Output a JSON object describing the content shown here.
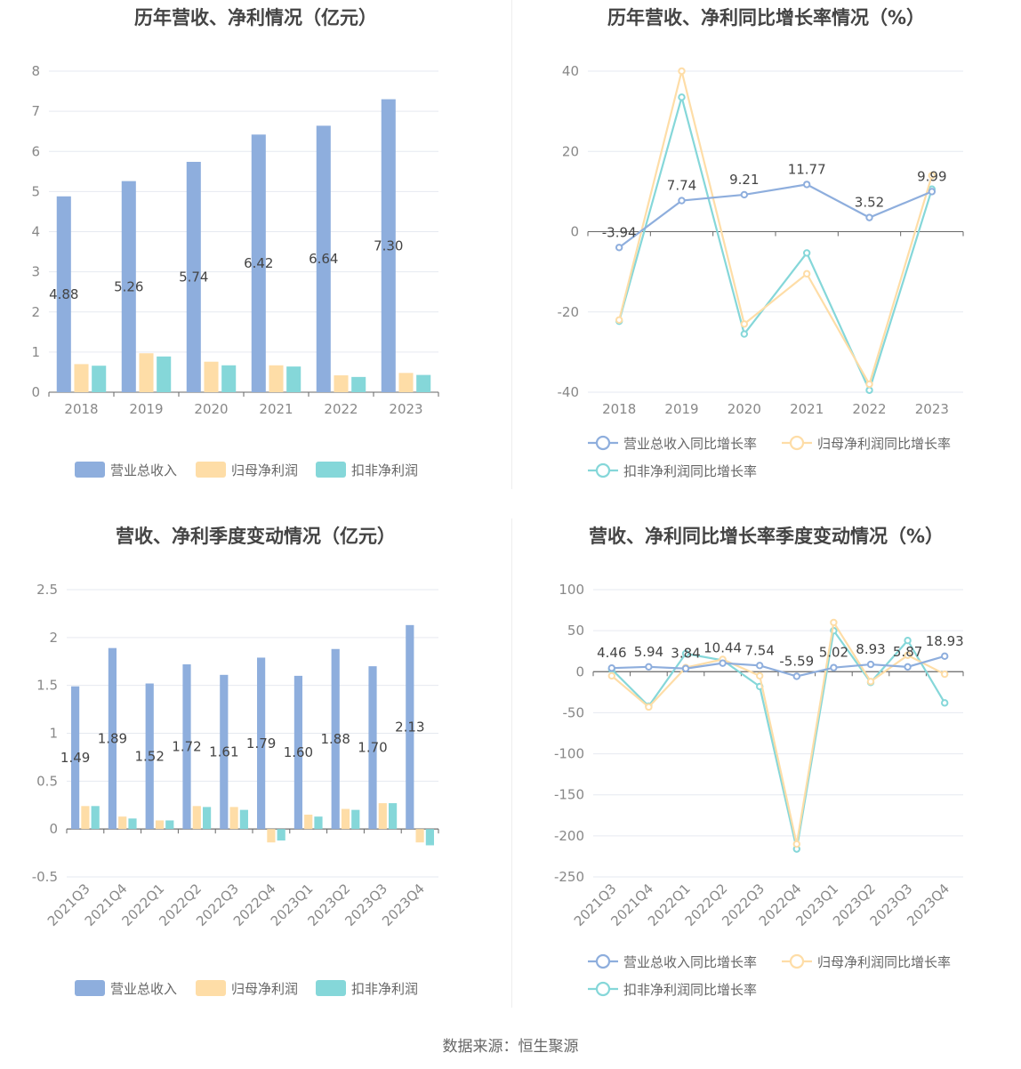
{
  "source": "数据来源：恒生聚源",
  "chart_data": [
    {
      "id": "annual_amount",
      "type": "bar",
      "title": "历年营收、净利情况（亿元）",
      "categories": [
        "2018",
        "2019",
        "2020",
        "2021",
        "2022",
        "2023"
      ],
      "ylim": [
        0,
        8
      ],
      "yticks": [
        0,
        1,
        2,
        3,
        4,
        5,
        6,
        7,
        8
      ],
      "grid": true,
      "legend_position": "bottom",
      "series": [
        {
          "name": "营业总收入",
          "color": "#8eaedd",
          "values": [
            4.88,
            5.26,
            5.74,
            6.42,
            6.64,
            7.3
          ],
          "labels": [
            "4.88",
            "5.26",
            "5.74",
            "6.42",
            "6.64",
            "7.30"
          ]
        },
        {
          "name": "归母净利润",
          "color": "#fedda7",
          "values": [
            0.7,
            0.97,
            0.76,
            0.67,
            0.42,
            0.48
          ]
        },
        {
          "name": "扣非净利润",
          "color": "#85d7d9",
          "values": [
            0.66,
            0.89,
            0.67,
            0.64,
            0.38,
            0.43
          ]
        }
      ]
    },
    {
      "id": "annual_growth",
      "type": "line",
      "title": "历年营收、净利同比增长率情况（%）",
      "categories": [
        "2018",
        "2019",
        "2020",
        "2021",
        "2022",
        "2023"
      ],
      "ylim": [
        -40,
        40
      ],
      "yticks": [
        -40,
        -20,
        0,
        20,
        40
      ],
      "grid": true,
      "legend_position": "bottom",
      "series": [
        {
          "name": "营业总收入同比增长率",
          "color": "#8eaedd",
          "values": [
            -3.94,
            7.74,
            9.21,
            11.77,
            3.52,
            9.99
          ],
          "labels": [
            "-3.94",
            "7.74",
            "9.21",
            "11.77",
            "3.52",
            "9.99"
          ]
        },
        {
          "name": "归母净利润同比增长率",
          "color": "#fedda7",
          "values": [
            -22,
            40,
            -23,
            -10.5,
            -38,
            14
          ]
        },
        {
          "name": "扣非净利润同比增长率",
          "color": "#85d7d9",
          "values": [
            -22.3,
            33.5,
            -25.5,
            -5.3,
            -39.5,
            10.6
          ]
        }
      ]
    },
    {
      "id": "quarterly_amount",
      "type": "bar",
      "title": "营收、净利季度变动情况（亿元）",
      "categories": [
        "2021Q3",
        "2021Q4",
        "2022Q1",
        "2022Q2",
        "2022Q3",
        "2022Q4",
        "2023Q1",
        "2023Q2",
        "2023Q3",
        "2023Q4"
      ],
      "ylim": [
        -0.5,
        2.5
      ],
      "yticks": [
        -0.5,
        0,
        0.5,
        1,
        1.5,
        2,
        2.5
      ],
      "yticklabels": [
        "-0.5",
        "0",
        "0.5",
        "1",
        "1.5",
        "2",
        "2.5"
      ],
      "grid": true,
      "legend_position": "bottom",
      "series": [
        {
          "name": "营业总收入",
          "color": "#8eaedd",
          "values": [
            1.49,
            1.89,
            1.52,
            1.72,
            1.61,
            1.79,
            1.6,
            1.88,
            1.7,
            2.13
          ],
          "labels": [
            "1.49",
            "1.89",
            "1.52",
            "1.72",
            "1.61",
            "1.79",
            "1.60",
            "1.88",
            "1.70",
            "2.13"
          ]
        },
        {
          "name": "归母净利润",
          "color": "#fedda7",
          "values": [
            0.24,
            0.13,
            0.09,
            0.24,
            0.23,
            -0.14,
            0.15,
            0.21,
            0.27,
            -0.14
          ]
        },
        {
          "name": "扣非净利润",
          "color": "#85d7d9",
          "values": [
            0.24,
            0.11,
            0.09,
            0.23,
            0.2,
            -0.12,
            0.13,
            0.2,
            0.27,
            -0.17
          ]
        }
      ]
    },
    {
      "id": "quarterly_growth",
      "type": "line",
      "title": "营收、净利同比增长率季度变动情况（%）",
      "categories": [
        "2021Q3",
        "2021Q4",
        "2022Q1",
        "2022Q2",
        "2022Q3",
        "2022Q4",
        "2023Q1",
        "2023Q2",
        "2023Q3",
        "2023Q4"
      ],
      "ylim": [
        -250,
        100
      ],
      "yticks": [
        -250,
        -200,
        -150,
        -100,
        -50,
        0,
        50,
        100
      ],
      "grid": true,
      "legend_position": "bottom",
      "series": [
        {
          "name": "营业总收入同比增长率",
          "color": "#8eaedd",
          "values": [
            4.46,
            5.94,
            3.84,
            10.44,
            7.54,
            -5.59,
            5.02,
            8.93,
            5.87,
            18.93
          ],
          "labels": [
            "4.46",
            "5.94",
            "3.84",
            "10.44",
            "7.54",
            "-5.59",
            "5.02",
            "8.93",
            "5.87",
            "18.93"
          ]
        },
        {
          "name": "归母净利润同比增长率",
          "color": "#fedda7",
          "values": [
            -5,
            -43,
            5,
            15,
            -5,
            -210,
            60,
            -12,
            20,
            -3
          ]
        },
        {
          "name": "扣非净利润同比增长率",
          "color": "#85d7d9",
          "values": [
            3,
            -42,
            22,
            14,
            -18,
            -216,
            50,
            -13,
            38,
            -38
          ]
        }
      ]
    }
  ]
}
